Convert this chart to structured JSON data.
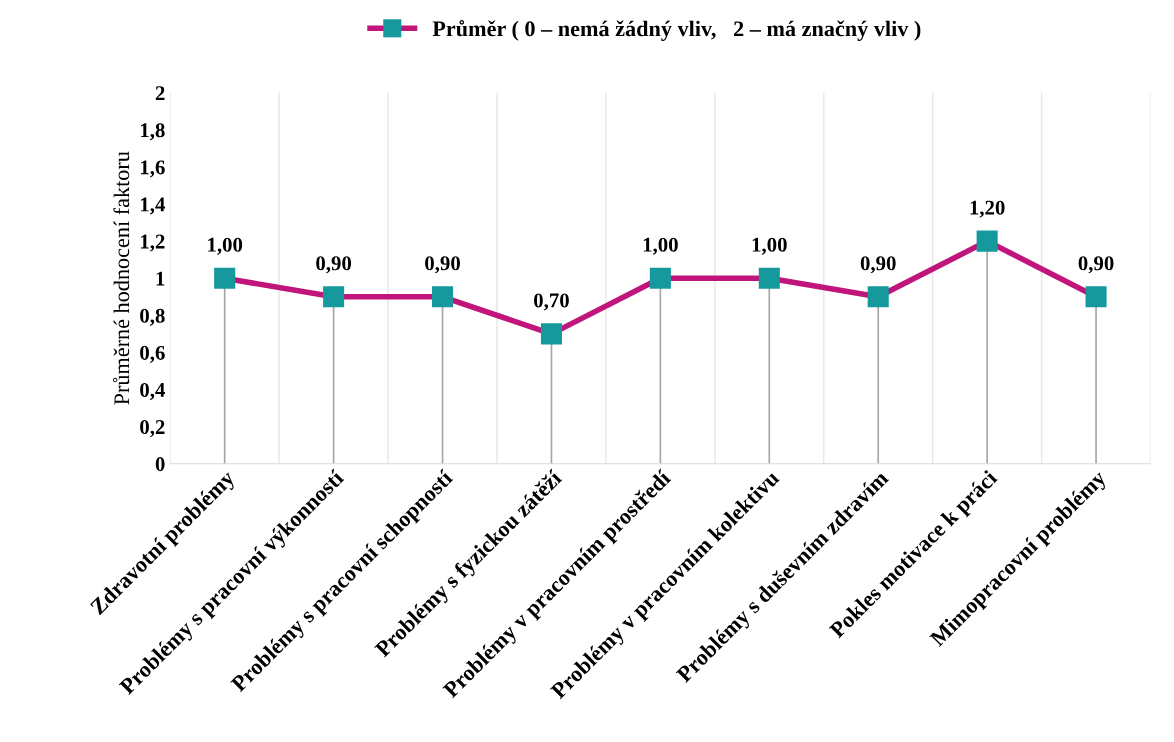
{
  "chart_data": {
    "type": "lollipop",
    "ylabel": "Průměrné hodnocení faktoru",
    "categories": [
      "Zdravotní problémy",
      "Problémy s pracovní výkonností",
      "Problémy s pracovní schopností",
      "Problémy s fyzickou zátěží",
      "Problémy v pracovním prostředí",
      "Problémy v pracovním kolektivu",
      "Problémy s duševním zdravím",
      "Pokles motivace k práci",
      "Mimopracovní problémy"
    ],
    "series": [
      {
        "type": "line",
        "name": "Průměr ( 0 – nemá žádný vliv,   2 – má značný vliv )",
        "color": "#c0157a",
        "colors": [
          "#16999c",
          "#16999c",
          "#16999c",
          "#16999c",
          "#16999c",
          "#16999c",
          "#16999c",
          "#16999c",
          "#16999c"
        ],
        "values": [
          1.0,
          0.9,
          0.9,
          0.7,
          1.0,
          1.0,
          0.9,
          1.2,
          0.9
        ],
        "value_labels": [
          "1,00",
          "0,90",
          "0,90",
          "0,70",
          "1,00",
          "1,00",
          "0,90",
          "1,20",
          "0,90"
        ]
      }
    ],
    "ylim": [
      0,
      2
    ],
    "yticks": [
      0,
      {
        "value": 0.2,
        "label": "0,2"
      },
      {
        "value": 0.4,
        "label": "0,4"
      },
      {
        "value": 0.6,
        "label": "0,6"
      },
      {
        "value": 0.8,
        "label": "0,8"
      },
      1,
      {
        "value": 1.2,
        "label": "1,2"
      },
      {
        "value": 1.4,
        "label": "1,4"
      },
      {
        "value": 1.6,
        "label": "1,6"
      },
      {
        "value": 1.8,
        "label": "1,8"
      },
      2
    ],
    "grid": "x",
    "legend": "top",
    "marker": "square",
    "line_style": "solid"
  }
}
